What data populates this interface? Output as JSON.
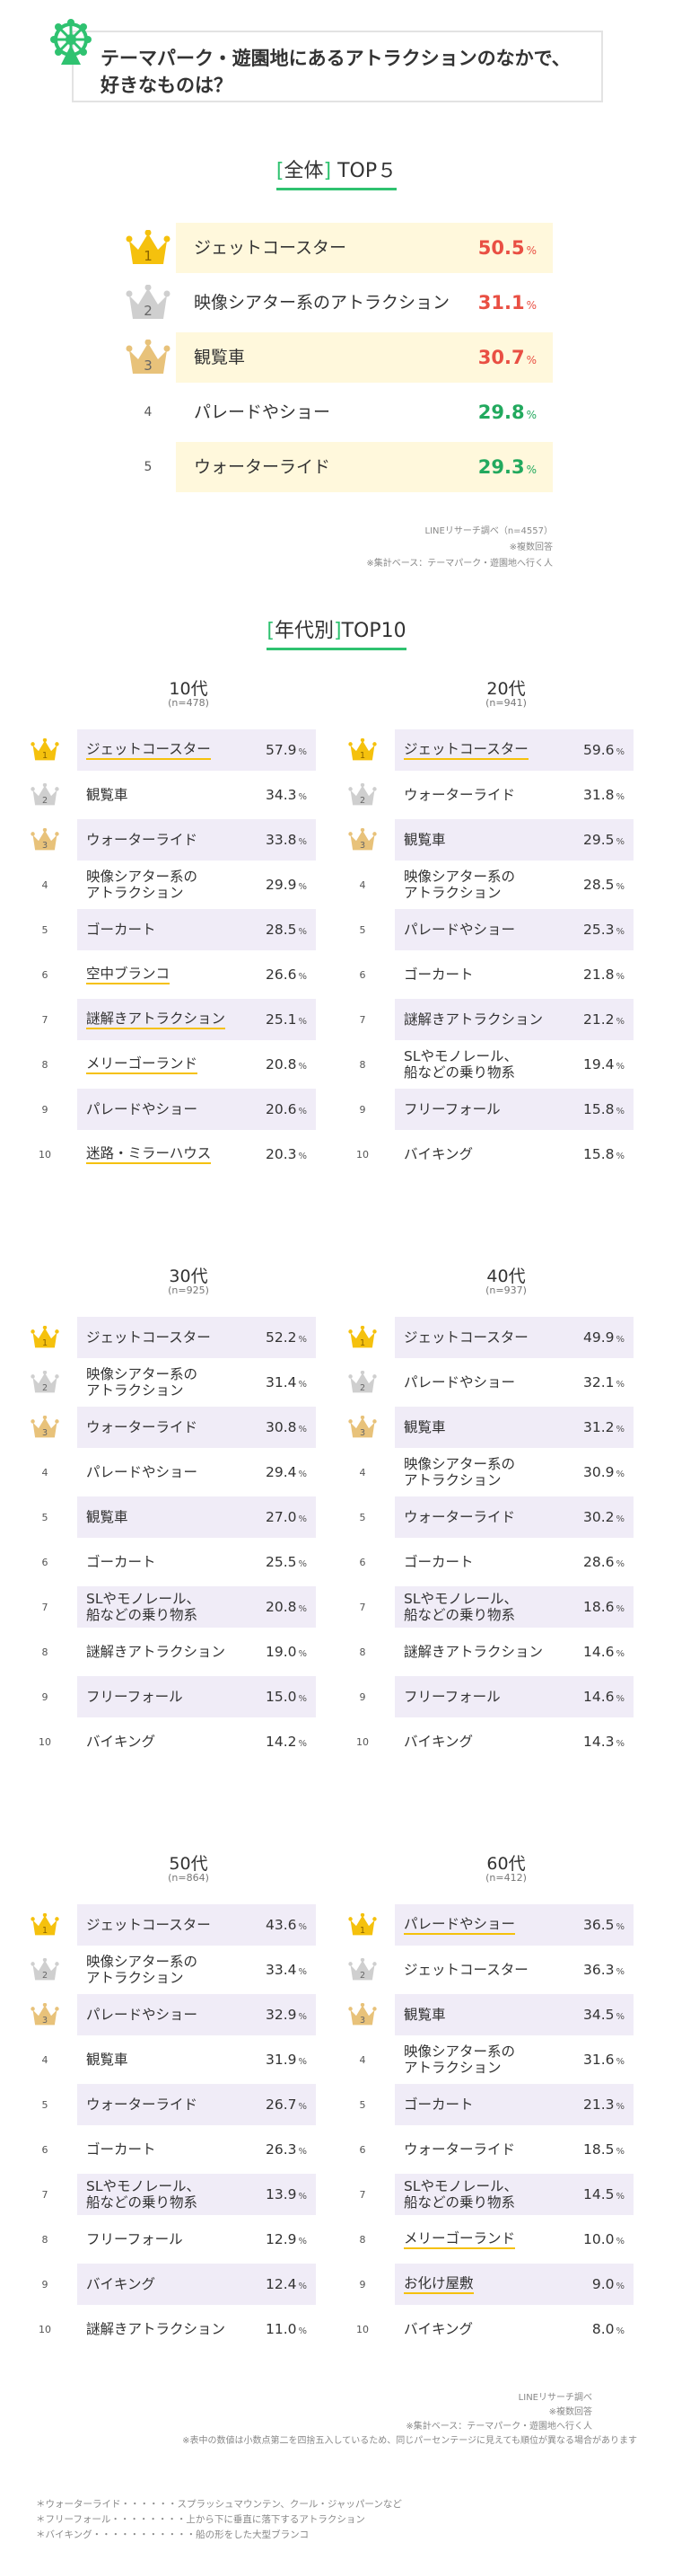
{
  "title": {
    "line1": "テーマパーク・遊園地にあるアトラクションのなかで、",
    "line2": "好きなものは？"
  },
  "overall": {
    "heading_open": "[",
    "heading_word": "全体",
    "heading_close": "]",
    "heading_rest": " TOP５",
    "source": "LINEリサーチ調べ（n=4557）",
    "note1": "※複数回答",
    "note2": "※集計ベース：テーマパーク・遊園地へ行く人"
  },
  "by_age": {
    "heading_open": "[",
    "heading_word": "年代別",
    "heading_close": "]",
    "heading_rest": "TOP10"
  },
  "bottom_notes": {
    "source": "LINEリサーチ調べ",
    "note1": "※複数回答",
    "note2": "※集計ベース：テーマパーク・遊園地へ行く人",
    "note3": "※表中の数値は小数点第二を四捨五入しているため、同じパーセンテージに見えても順位が異なる場合があります"
  },
  "footnotes": [
    "＊ウォーターライド・・・・・・スプラッシュマウンテン、クール・ジャッパーンなど",
    "＊フリーフォール・・・・・・・・上から下に垂直に落下するアトラクション",
    "＊バイキング・・・・・・・・・・・船の形をした大型ブランコ"
  ],
  "colors": {
    "accent_green": "#2fc270",
    "gold": "#f5c10d",
    "red": "#e94f43",
    "highlight_yellow": "#fff8dc",
    "highlight_lavender": "#f0ecf7"
  },
  "chart_data": [
    {
      "type": "table",
      "title": "全体 TOP５",
      "unit": "%",
      "rows": [
        {
          "rank": 1,
          "label": "ジェットコースター",
          "value": 50.5
        },
        {
          "rank": 2,
          "label": "映像シアター系のアトラクション",
          "value": 31.1
        },
        {
          "rank": 3,
          "label": "観覧車",
          "value": 30.7
        },
        {
          "rank": 4,
          "label": "パレードやショー",
          "value": 29.8
        },
        {
          "rank": 5,
          "label": "ウォーターライド",
          "value": 29.3
        }
      ]
    },
    {
      "type": "table",
      "title": "10代",
      "n": "(n=478)",
      "unit": "%",
      "rows": [
        {
          "rank": 1,
          "label": "ジェットコースター",
          "value": 57.9,
          "underline": true
        },
        {
          "rank": 2,
          "label": "観覧車",
          "value": 34.3
        },
        {
          "rank": 3,
          "label": "ウォーターライド",
          "value": 33.8
        },
        {
          "rank": 4,
          "label": "映像シアター系の\nアトラクション",
          "value": 29.9
        },
        {
          "rank": 5,
          "label": "ゴーカート",
          "value": 28.5
        },
        {
          "rank": 6,
          "label": "空中ブランコ",
          "value": 26.6,
          "underline": true
        },
        {
          "rank": 7,
          "label": "謎解きアトラクション",
          "value": 25.1,
          "underline": true
        },
        {
          "rank": 8,
          "label": "メリーゴーランド",
          "value": 20.8,
          "underline": true
        },
        {
          "rank": 9,
          "label": "パレードやショー",
          "value": 20.6
        },
        {
          "rank": 10,
          "label": "迷路・ミラーハウス",
          "value": 20.3,
          "underline": true
        }
      ]
    },
    {
      "type": "table",
      "title": "20代",
      "n": "(n=941)",
      "unit": "%",
      "rows": [
        {
          "rank": 1,
          "label": "ジェットコースター",
          "value": 59.6,
          "underline": true
        },
        {
          "rank": 2,
          "label": "ウォーターライド",
          "value": 31.8
        },
        {
          "rank": 3,
          "label": "観覧車",
          "value": 29.5
        },
        {
          "rank": 4,
          "label": "映像シアター系の\nアトラクション",
          "value": 28.5
        },
        {
          "rank": 5,
          "label": "パレードやショー",
          "value": 25.3
        },
        {
          "rank": 6,
          "label": "ゴーカート",
          "value": 21.8
        },
        {
          "rank": 7,
          "label": "謎解きアトラクション",
          "value": 21.2
        },
        {
          "rank": 8,
          "label": "SLやモノレール、\n船などの乗り物系",
          "value": 19.4
        },
        {
          "rank": 9,
          "label": "フリーフォール",
          "value": 15.8
        },
        {
          "rank": 10,
          "label": "バイキング",
          "value": 15.8
        }
      ]
    },
    {
      "type": "table",
      "title": "30代",
      "n": "(n=925)",
      "unit": "%",
      "rows": [
        {
          "rank": 1,
          "label": "ジェットコースター",
          "value": 52.2
        },
        {
          "rank": 2,
          "label": "映像シアター系の\nアトラクション",
          "value": 31.4
        },
        {
          "rank": 3,
          "label": "ウォーターライド",
          "value": 30.8
        },
        {
          "rank": 4,
          "label": "パレードやショー",
          "value": 29.4
        },
        {
          "rank": 5,
          "label": "観覧車",
          "value": 27.0
        },
        {
          "rank": 6,
          "label": "ゴーカート",
          "value": 25.5
        },
        {
          "rank": 7,
          "label": "SLやモノレール、\n船などの乗り物系",
          "value": 20.8
        },
        {
          "rank": 8,
          "label": "謎解きアトラクション",
          "value": 19.0
        },
        {
          "rank": 9,
          "label": "フリーフォール",
          "value": 15.0
        },
        {
          "rank": 10,
          "label": "バイキング",
          "value": 14.2
        }
      ]
    },
    {
      "type": "table",
      "title": "40代",
      "n": "(n=937)",
      "unit": "%",
      "rows": [
        {
          "rank": 1,
          "label": "ジェットコースター",
          "value": 49.9
        },
        {
          "rank": 2,
          "label": "パレードやショー",
          "value": 32.1
        },
        {
          "rank": 3,
          "label": "観覧車",
          "value": 31.2
        },
        {
          "rank": 4,
          "label": "映像シアター系の\nアトラクション",
          "value": 30.9
        },
        {
          "rank": 5,
          "label": "ウォーターライド",
          "value": 30.2
        },
        {
          "rank": 6,
          "label": "ゴーカート",
          "value": 28.6
        },
        {
          "rank": 7,
          "label": "SLやモノレール、\n船などの乗り物系",
          "value": 18.6
        },
        {
          "rank": 8,
          "label": "謎解きアトラクション",
          "value": 14.6
        },
        {
          "rank": 9,
          "label": "フリーフォール",
          "value": 14.6
        },
        {
          "rank": 10,
          "label": "バイキング",
          "value": 14.3
        }
      ]
    },
    {
      "type": "table",
      "title": "50代",
      "n": "(n=864)",
      "unit": "%",
      "rows": [
        {
          "rank": 1,
          "label": "ジェットコースター",
          "value": 43.6
        },
        {
          "rank": 2,
          "label": "映像シアター系の\nアトラクション",
          "value": 33.4
        },
        {
          "rank": 3,
          "label": "パレードやショー",
          "value": 32.9
        },
        {
          "rank": 4,
          "label": "観覧車",
          "value": 31.9
        },
        {
          "rank": 5,
          "label": "ウォーターライド",
          "value": 26.7
        },
        {
          "rank": 6,
          "label": "ゴーカート",
          "value": 26.3
        },
        {
          "rank": 7,
          "label": "SLやモノレール、\n船などの乗り物系",
          "value": 13.9
        },
        {
          "rank": 8,
          "label": "フリーフォール",
          "value": 12.9
        },
        {
          "rank": 9,
          "label": "バイキング",
          "value": 12.4
        },
        {
          "rank": 10,
          "label": "謎解きアトラクション",
          "value": 11.0
        }
      ]
    },
    {
      "type": "table",
      "title": "60代",
      "n": "(n=412)",
      "unit": "%",
      "rows": [
        {
          "rank": 1,
          "label": "パレードやショー",
          "value": 36.5,
          "underline": true
        },
        {
          "rank": 2,
          "label": "ジェットコースター",
          "value": 36.3
        },
        {
          "rank": 3,
          "label": "観覧車",
          "value": 34.5
        },
        {
          "rank": 4,
          "label": "映像シアター系の\nアトラクション",
          "value": 31.6
        },
        {
          "rank": 5,
          "label": "ゴーカート",
          "value": 21.3
        },
        {
          "rank": 6,
          "label": "ウォーターライド",
          "value": 18.5
        },
        {
          "rank": 7,
          "label": "SLやモノレール、\n船などの乗り物系",
          "value": 14.5
        },
        {
          "rank": 8,
          "label": "メリーゴーランド",
          "value": 10.0,
          "underline": true
        },
        {
          "rank": 9,
          "label": "お化け屋敷",
          "value": 9.0,
          "underline": true
        },
        {
          "rank": 10,
          "label": "バイキング",
          "value": 8.0
        }
      ]
    }
  ]
}
